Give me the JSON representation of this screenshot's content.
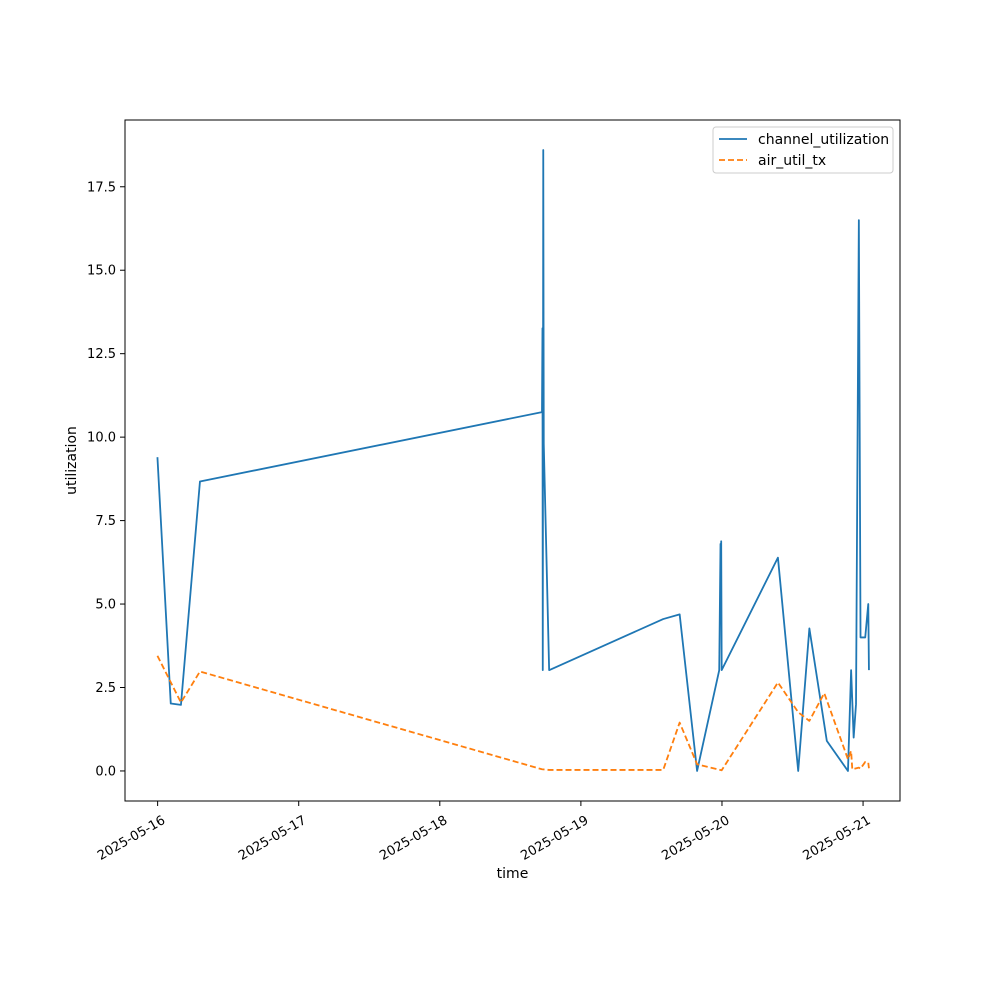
{
  "chart_data": {
    "type": "line",
    "title": "",
    "xlabel": "time",
    "ylabel": "utilization",
    "grid": false,
    "legend_position": "top-right",
    "xlim": [
      "2025-05-15T18:27",
      "2025-05-21T06:17"
    ],
    "ylim": [
      -0.9,
      19.5
    ],
    "x_ticks": [
      "2025-05-16",
      "2025-05-17",
      "2025-05-18",
      "2025-05-19",
      "2025-05-20",
      "2025-05-21"
    ],
    "y_ticks": [
      0.0,
      2.5,
      5.0,
      7.5,
      10.0,
      12.5,
      15.0,
      17.5
    ],
    "y_tick_labels": [
      "0.0",
      "2.5",
      "5.0",
      "7.5",
      "10.0",
      "12.5",
      "15.0",
      "17.5"
    ],
    "series": [
      {
        "name": "channel_utilization",
        "color": "#1f77b4",
        "style": "solid",
        "points": [
          [
            "2025-05-15T23:58",
            9.4
          ],
          [
            "2025-05-16T02:14",
            2.02
          ],
          [
            "2025-05-16T03:58",
            1.98
          ],
          [
            "2025-05-16T07:12",
            8.67
          ],
          [
            "2025-05-18T17:23",
            10.75
          ],
          [
            "2025-05-18T17:28",
            13.26
          ],
          [
            "2025-05-18T17:31",
            3.02
          ],
          [
            "2025-05-18T17:36",
            18.6
          ],
          [
            "2025-05-18T17:41",
            9.8
          ],
          [
            "2025-05-18T18:36",
            3.02
          ],
          [
            "2025-05-19T14:00",
            4.55
          ],
          [
            "2025-05-19T16:48",
            4.69
          ],
          [
            "2025-05-19T19:46",
            0.0
          ],
          [
            "2025-05-19T23:32",
            3.02
          ],
          [
            "2025-05-19T23:45",
            6.8
          ],
          [
            "2025-05-19T23:49",
            4.82
          ],
          [
            "2025-05-19T23:52",
            6.88
          ],
          [
            "2025-05-19T23:57",
            3.02
          ],
          [
            "2025-05-20T09:31",
            6.39
          ],
          [
            "2025-05-20T12:58",
            0.0
          ],
          [
            "2025-05-20T14:52",
            4.27
          ],
          [
            "2025-05-20T17:50",
            0.9
          ],
          [
            "2025-05-20T21:26",
            0.0
          ],
          [
            "2025-05-20T21:58",
            3.02
          ],
          [
            "2025-05-20T22:24",
            1.0
          ],
          [
            "2025-05-20T22:48",
            2.0
          ],
          [
            "2025-05-20T23:17",
            16.5
          ],
          [
            "2025-05-20T23:34",
            4.0
          ],
          [
            "2025-05-21T00:22",
            4.0
          ],
          [
            "2025-05-21T00:53",
            5.0
          ],
          [
            "2025-05-21T01:00",
            3.02
          ]
        ]
      },
      {
        "name": "air_util_tx",
        "color": "#ff7f0e",
        "style": "dashed",
        "points": [
          [
            "2025-05-15T23:58",
            3.45
          ],
          [
            "2025-05-16T03:58",
            2.05
          ],
          [
            "2025-05-16T07:12",
            2.98
          ],
          [
            "2025-05-18T17:23",
            0.05
          ],
          [
            "2025-05-18T18:36",
            0.03
          ],
          [
            "2025-05-19T14:00",
            0.03
          ],
          [
            "2025-05-19T16:48",
            1.45
          ],
          [
            "2025-05-19T19:46",
            0.2
          ],
          [
            "2025-05-19T23:57",
            0.02
          ],
          [
            "2025-05-20T09:31",
            2.65
          ],
          [
            "2025-05-20T12:58",
            1.76
          ],
          [
            "2025-05-20T14:52",
            1.5
          ],
          [
            "2025-05-20T17:24",
            2.33
          ],
          [
            "2025-05-20T21:26",
            0.35
          ],
          [
            "2025-05-20T21:58",
            0.6
          ],
          [
            "2025-05-20T22:10",
            0.05
          ],
          [
            "2025-05-20T23:17",
            0.1
          ],
          [
            "2025-05-20T23:34",
            0.07
          ],
          [
            "2025-05-21T00:22",
            0.27
          ],
          [
            "2025-05-21T00:53",
            0.25
          ],
          [
            "2025-05-21T01:00",
            0.08
          ]
        ]
      }
    ]
  }
}
